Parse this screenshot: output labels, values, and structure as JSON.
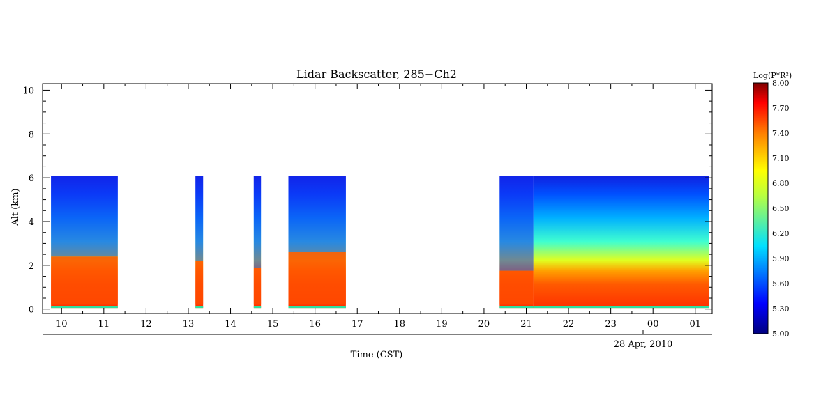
{
  "chart_data": {
    "type": "heatmap",
    "title": "Lidar Backscatter, 285−Ch2",
    "xlabel": "Time (CST)",
    "ylabel": "Alt (km)",
    "date_label": "28 Apr, 2010",
    "x_ticks": [
      "10",
      "11",
      "12",
      "13",
      "14",
      "15",
      "16",
      "17",
      "18",
      "19",
      "20",
      "21",
      "22",
      "23",
      "00",
      "01"
    ],
    "y_ticks": [
      "0",
      "2",
      "4",
      "6",
      "8",
      "10"
    ],
    "xlim": [
      9.55,
      25.4
    ],
    "ylim": [
      -0.2,
      10.3
    ],
    "colorbar": {
      "label": "Log(P*R²)",
      "ticks": [
        "5.00",
        "5.30",
        "5.60",
        "5.90",
        "6.20",
        "6.50",
        "6.80",
        "7.10",
        "7.40",
        "7.70",
        "8.00"
      ],
      "range": [
        5.0,
        8.0
      ]
    },
    "data_segments": [
      {
        "start": 9.75,
        "end": 11.33,
        "cloud_top_km": 2.4
      },
      {
        "start": 13.17,
        "end": 13.35,
        "cloud_top_km": 2.2
      },
      {
        "start": 14.55,
        "end": 14.72,
        "cloud_top_km": 1.9
      },
      {
        "start": 15.37,
        "end": 16.73,
        "cloud_top_km": 2.6
      },
      {
        "start": 20.37,
        "end": 21.17,
        "cloud_top_km": 1.75
      },
      {
        "start": 21.17,
        "end": 25.33,
        "cloud_top_km": null
      }
    ],
    "max_alt_km": 6.1
  }
}
